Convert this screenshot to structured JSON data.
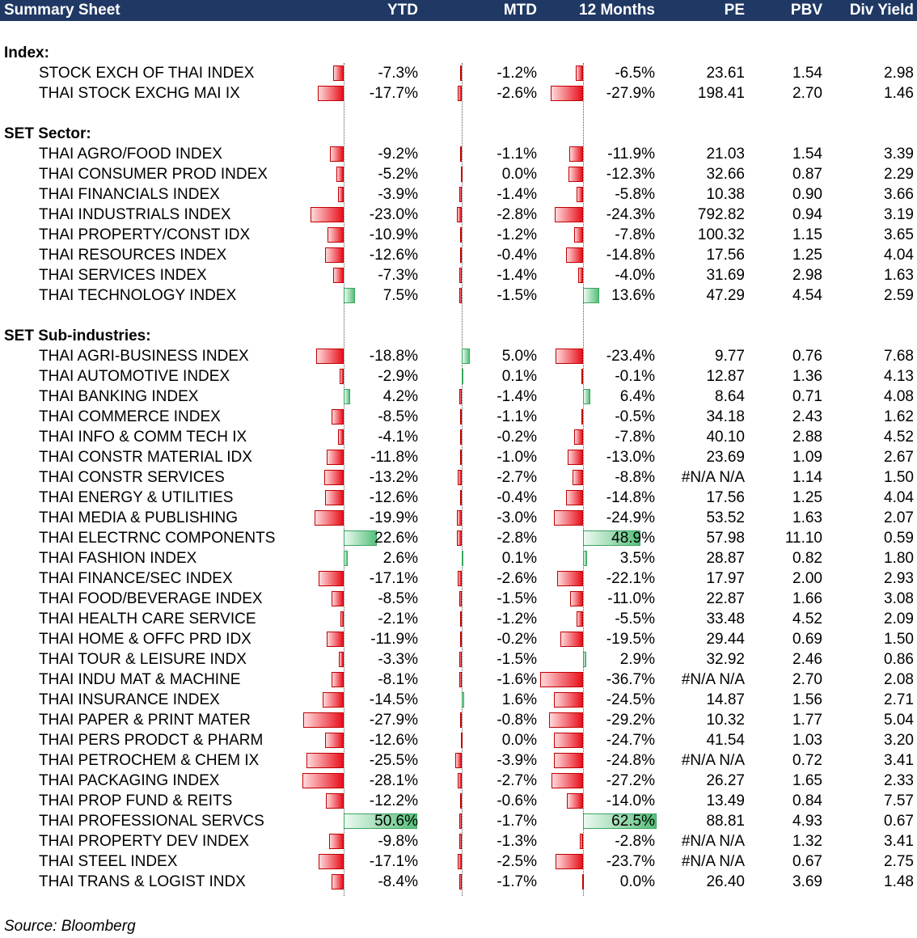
{
  "header": {
    "title": "Summary Sheet",
    "columns": [
      "YTD",
      "MTD",
      "12 Months",
      "PE",
      "PBV",
      "Div Yield"
    ]
  },
  "sections": [
    {
      "title": "Index:",
      "rows": [
        {
          "name": "STOCK EXCH OF THAI INDEX",
          "ytd": -7.3,
          "mtd": -1.2,
          "m12": -6.5,
          "pe": "23.61",
          "pbv": "1.54",
          "dy": "2.98"
        },
        {
          "name": "THAI STOCK EXCHG MAI IX",
          "ytd": -17.7,
          "mtd": -2.6,
          "m12": -27.9,
          "pe": "198.41",
          "pbv": "2.70",
          "dy": "1.46"
        }
      ]
    },
    {
      "title": "SET Sector:",
      "rows": [
        {
          "name": "THAI AGRO/FOOD INDEX",
          "ytd": -9.2,
          "mtd": -1.1,
          "m12": -11.9,
          "pe": "21.03",
          "pbv": "1.54",
          "dy": "3.39"
        },
        {
          "name": "THAI CONSUMER PROD INDEX",
          "ytd": -5.2,
          "mtd": 0.0,
          "m12": -12.3,
          "pe": "32.66",
          "pbv": "0.87",
          "dy": "2.29"
        },
        {
          "name": "THAI FINANCIALS INDEX",
          "ytd": -3.9,
          "mtd": -1.4,
          "m12": -5.8,
          "pe": "10.38",
          "pbv": "0.90",
          "dy": "3.66"
        },
        {
          "name": "THAI INDUSTRIALS INDEX",
          "ytd": -23.0,
          "mtd": -2.8,
          "m12": -24.3,
          "pe": "792.82",
          "pbv": "0.94",
          "dy": "3.19"
        },
        {
          "name": "THAI PROPERTY/CONST IDX",
          "ytd": -10.9,
          "mtd": -1.2,
          "m12": -7.8,
          "pe": "100.32",
          "pbv": "1.15",
          "dy": "3.65"
        },
        {
          "name": "THAI RESOURCES INDEX",
          "ytd": -12.6,
          "mtd": -0.4,
          "m12": -14.8,
          "pe": "17.56",
          "pbv": "1.25",
          "dy": "4.04"
        },
        {
          "name": "THAI SERVICES INDEX",
          "ytd": -7.3,
          "mtd": -1.4,
          "m12": -4.0,
          "pe": "31.69",
          "pbv": "2.98",
          "dy": "1.63"
        },
        {
          "name": "THAI TECHNOLOGY INDEX",
          "ytd": 7.5,
          "mtd": -1.5,
          "m12": 13.6,
          "pe": "47.29",
          "pbv": "4.54",
          "dy": "2.59"
        }
      ]
    },
    {
      "title": "SET Sub-industries:",
      "rows": [
        {
          "name": "THAI AGRI-BUSINESS INDEX",
          "ytd": -18.8,
          "mtd": 5.0,
          "m12": -23.4,
          "pe": "9.77",
          "pbv": "0.76",
          "dy": "7.68"
        },
        {
          "name": "THAI AUTOMOTIVE INDEX",
          "ytd": -2.9,
          "mtd": 0.1,
          "m12": -0.1,
          "pe": "12.87",
          "pbv": "1.36",
          "dy": "4.13"
        },
        {
          "name": "THAI BANKING INDEX",
          "ytd": 4.2,
          "mtd": -1.4,
          "m12": 6.4,
          "pe": "8.64",
          "pbv": "0.71",
          "dy": "4.08"
        },
        {
          "name": "THAI COMMERCE INDEX",
          "ytd": -8.5,
          "mtd": -1.1,
          "m12": -0.5,
          "pe": "34.18",
          "pbv": "2.43",
          "dy": "1.62"
        },
        {
          "name": "THAI INFO & COMM TECH IX",
          "ytd": -4.1,
          "mtd": -0.2,
          "m12": -7.8,
          "pe": "40.10",
          "pbv": "2.88",
          "dy": "4.52"
        },
        {
          "name": "THAI CONSTR MATERIAL IDX",
          "ytd": -11.8,
          "mtd": -1.0,
          "m12": -13.0,
          "pe": "23.69",
          "pbv": "1.09",
          "dy": "2.67"
        },
        {
          "name": "THAI CONSTR SERVICES",
          "ytd": -13.2,
          "mtd": -2.7,
          "m12": -8.8,
          "pe": "#N/A N/A",
          "pbv": "1.14",
          "dy": "1.50"
        },
        {
          "name": "THAI ENERGY & UTILITIES",
          "ytd": -12.6,
          "mtd": -0.4,
          "m12": -14.8,
          "pe": "17.56",
          "pbv": "1.25",
          "dy": "4.04"
        },
        {
          "name": "THAI MEDIA & PUBLISHING",
          "ytd": -19.9,
          "mtd": -3.0,
          "m12": -24.9,
          "pe": "53.52",
          "pbv": "1.63",
          "dy": "2.07"
        },
        {
          "name": "THAI ELECTRNC COMPONENTS",
          "ytd": 22.6,
          "mtd": -2.8,
          "m12": 48.9,
          "pe": "57.98",
          "pbv": "11.10",
          "dy": "0.59"
        },
        {
          "name": "THAI FASHION INDEX",
          "ytd": 2.6,
          "mtd": 0.1,
          "m12": 3.5,
          "pe": "28.87",
          "pbv": "0.82",
          "dy": "1.80"
        },
        {
          "name": "THAI FINANCE/SEC INDEX",
          "ytd": -17.1,
          "mtd": -2.6,
          "m12": -22.1,
          "pe": "17.97",
          "pbv": "2.00",
          "dy": "2.93"
        },
        {
          "name": "THAI FOOD/BEVERAGE INDEX",
          "ytd": -8.5,
          "mtd": -1.5,
          "m12": -11.0,
          "pe": "22.87",
          "pbv": "1.66",
          "dy": "3.08"
        },
        {
          "name": "THAI HEALTH CARE SERVICE",
          "ytd": -2.1,
          "mtd": -1.2,
          "m12": -5.5,
          "pe": "33.48",
          "pbv": "4.52",
          "dy": "2.09"
        },
        {
          "name": "THAI HOME & OFFC PRD IDX",
          "ytd": -11.9,
          "mtd": -0.2,
          "m12": -19.5,
          "pe": "29.44",
          "pbv": "0.69",
          "dy": "1.50"
        },
        {
          "name": "THAI TOUR & LEISURE INDX",
          "ytd": -3.3,
          "mtd": -1.5,
          "m12": 2.9,
          "pe": "32.92",
          "pbv": "2.46",
          "dy": "0.86"
        },
        {
          "name": "THAI INDU MAT & MACHINE",
          "ytd": -8.1,
          "mtd": -1.6,
          "m12": -36.7,
          "pe": "#N/A N/A",
          "pbv": "2.70",
          "dy": "2.08"
        },
        {
          "name": "THAI INSURANCE INDEX",
          "ytd": -14.5,
          "mtd": 1.6,
          "m12": -24.5,
          "pe": "14.87",
          "pbv": "1.56",
          "dy": "2.71"
        },
        {
          "name": "THAI PAPER & PRINT MATER",
          "ytd": -27.9,
          "mtd": -0.8,
          "m12": -29.2,
          "pe": "10.32",
          "pbv": "1.77",
          "dy": "5.04"
        },
        {
          "name": "THAI PERS PRODCT & PHARM",
          "ytd": -12.6,
          "mtd": 0.0,
          "m12": -24.7,
          "pe": "41.54",
          "pbv": "1.03",
          "dy": "3.20"
        },
        {
          "name": "THAI PETROCHEM & CHEM IX",
          "ytd": -25.5,
          "mtd": -3.9,
          "m12": -24.8,
          "pe": "#N/A N/A",
          "pbv": "0.72",
          "dy": "3.41"
        },
        {
          "name": "THAI PACKAGING INDEX",
          "ytd": -28.1,
          "mtd": -2.7,
          "m12": -27.2,
          "pe": "26.27",
          "pbv": "1.65",
          "dy": "2.33"
        },
        {
          "name": "THAI PROP FUND & REITS",
          "ytd": -12.2,
          "mtd": -0.6,
          "m12": -14.0,
          "pe": "13.49",
          "pbv": "0.84",
          "dy": "7.57"
        },
        {
          "name": "THAI PROFESSIONAL SERVCS",
          "ytd": 50.6,
          "mtd": -1.7,
          "m12": 62.5,
          "pe": "88.81",
          "pbv": "4.93",
          "dy": "0.67"
        },
        {
          "name": "THAI PROPERTY DEV INDEX",
          "ytd": -9.8,
          "mtd": -1.3,
          "m12": -2.8,
          "pe": "#N/A N/A",
          "pbv": "1.32",
          "dy": "3.41"
        },
        {
          "name": "THAI STEEL INDEX",
          "ytd": -17.1,
          "mtd": -2.5,
          "m12": -23.7,
          "pe": "#N/A N/A",
          "pbv": "0.67",
          "dy": "2.75"
        },
        {
          "name": "THAI TRANS & LOGIST INDX",
          "ytd": -8.4,
          "mtd": -1.7,
          "m12": 0.0,
          "pe": "26.40",
          "pbv": "3.69",
          "dy": "1.48"
        }
      ]
    }
  ],
  "source": "Source: Bloomberg",
  "colors": {
    "header_bg": "#1f3864",
    "negative": "#e8101c",
    "positive": "#55c07a"
  }
}
